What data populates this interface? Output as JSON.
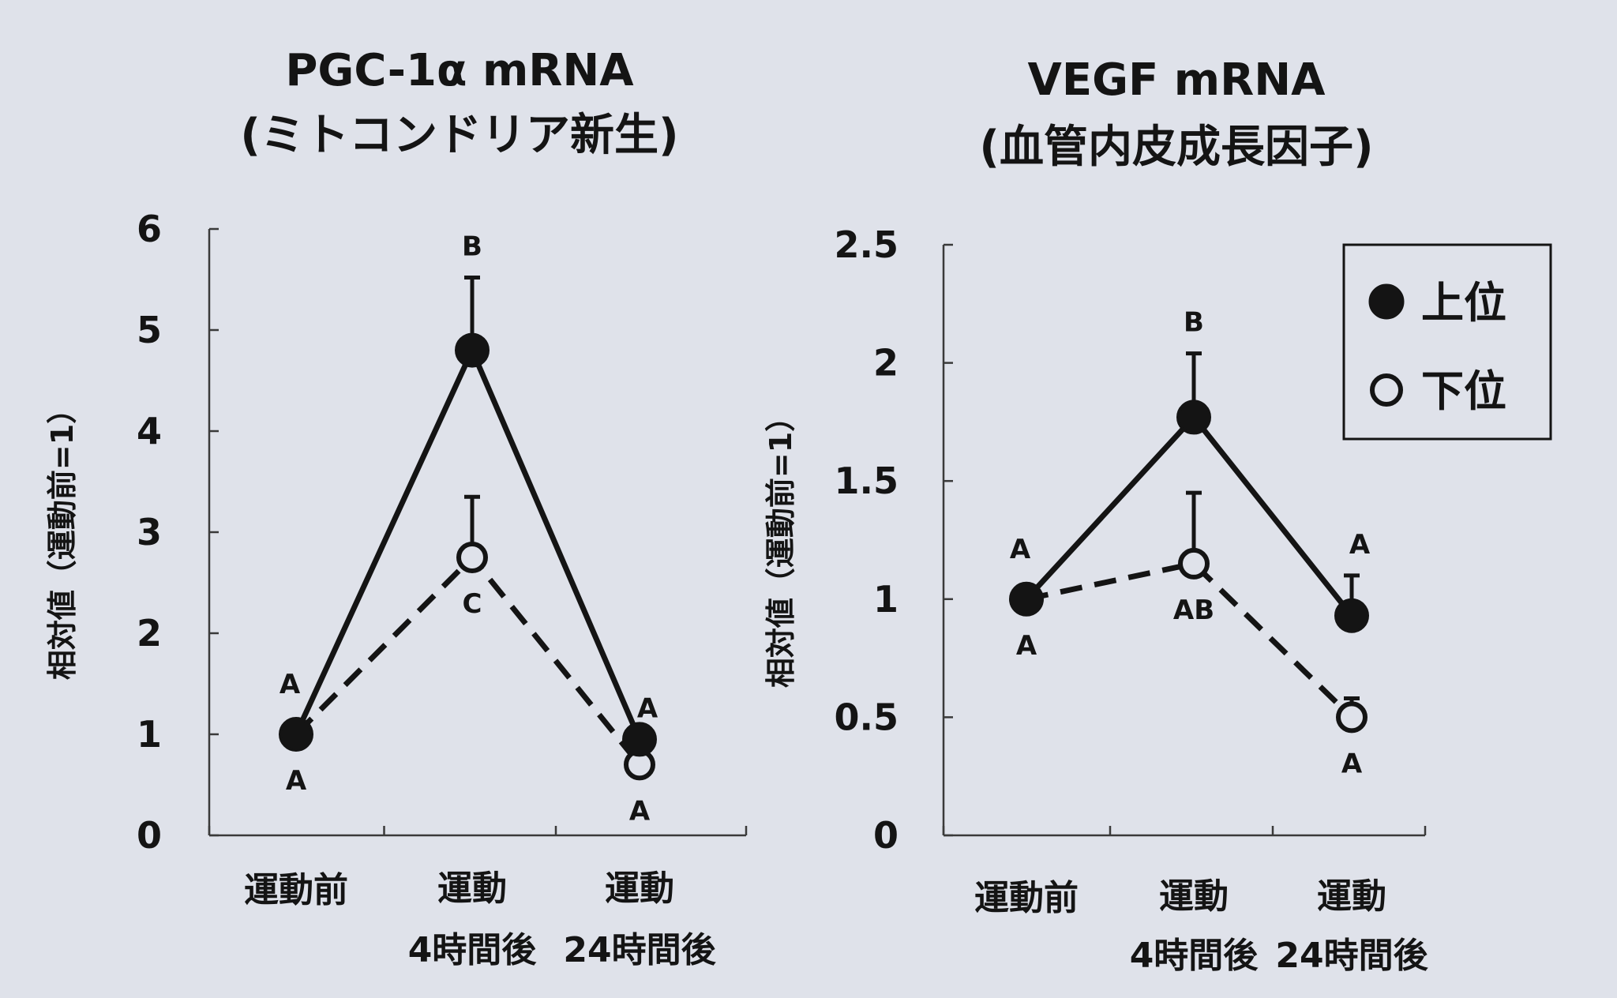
{
  "chart_data": [
    {
      "type": "line",
      "title": "PGC-1α mRNA",
      "subtitle": "(ミトコンドリア新生)",
      "ylabel": "相対値（運動前=1）",
      "xlabel": "",
      "ylim": [
        0,
        6
      ],
      "yticks": [
        "0",
        "1",
        "2",
        "3",
        "4",
        "5",
        "6"
      ],
      "categories": [
        {
          "line1": "運動前",
          "line2": ""
        },
        {
          "line1": "運動",
          "line2": "4時間後"
        },
        {
          "line1": "運動",
          "line2": "24時間後"
        }
      ],
      "series": [
        {
          "name": "上位",
          "marker": "filled",
          "dash": "solid",
          "values": [
            1.0,
            4.8,
            0.95
          ],
          "error": [
            0,
            0.72,
            0.0
          ],
          "labels": [
            "A",
            "B",
            "A"
          ]
        },
        {
          "name": "下位",
          "marker": "open",
          "dash": "dashed",
          "values": [
            1.0,
            2.75,
            0.7
          ],
          "error": [
            0,
            0.6,
            0.0
          ],
          "labels": [
            "A",
            "C",
            "A"
          ]
        }
      ]
    },
    {
      "type": "line",
      "title": "VEGF mRNA",
      "subtitle": "(血管内皮成長因子)",
      "ylabel": "相対値（運動前=1）",
      "xlabel": "",
      "ylim": [
        0,
        2.5
      ],
      "yticks": [
        "0",
        "0.5",
        "1",
        "1.5",
        "2",
        "2.5"
      ],
      "categories": [
        {
          "line1": "運動前",
          "line2": ""
        },
        {
          "line1": "運動",
          "line2": "4時間後"
        },
        {
          "line1": "運動",
          "line2": "24時間後"
        }
      ],
      "series": [
        {
          "name": "上位",
          "marker": "filled",
          "dash": "solid",
          "values": [
            1.0,
            1.77,
            0.93
          ],
          "error": [
            0,
            0.27,
            0.17
          ],
          "labels": [
            "A",
            "B",
            "A"
          ]
        },
        {
          "name": "下位",
          "marker": "open",
          "dash": "dashed",
          "values": [
            1.0,
            1.15,
            0.5
          ],
          "error": [
            0,
            0.3,
            0.08
          ],
          "labels": [
            "A",
            "AB",
            "A"
          ]
        }
      ]
    }
  ],
  "legend": {
    "placement": "top-right",
    "items": [
      {
        "label": "上位",
        "marker": "filled"
      },
      {
        "label": "下位",
        "marker": "open"
      }
    ]
  }
}
